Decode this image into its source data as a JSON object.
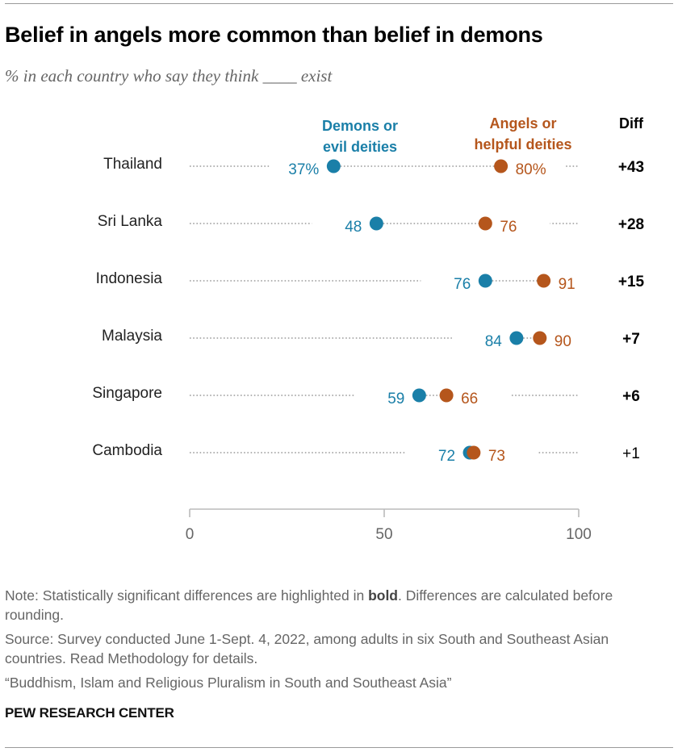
{
  "title": "Belief in angels more common than belief in demons",
  "subtitle": "% in each country who say they think ____ exist",
  "colors": {
    "demons": "#1a7fa8",
    "angels": "#b5561c",
    "axis": "#bbbbbb",
    "dots": "#9a9a9a"
  },
  "chart_data": {
    "type": "dot-plot",
    "title": "Belief in angels more common than belief in demons",
    "subtitle": "% in each country who say they think ____ exist",
    "xlim": [
      0,
      100
    ],
    "x_ticks": [
      0,
      50,
      100
    ],
    "diff_header": "Diff",
    "legend": {
      "demons": [
        "Demons or",
        "evil deities"
      ],
      "angels": [
        "Angels or",
        "helpful deities"
      ]
    },
    "series": [
      {
        "name": "Demons or evil deities",
        "key": "demons"
      },
      {
        "name": "Angels or helpful deities",
        "key": "angels"
      }
    ],
    "rows": [
      {
        "country": "Thailand",
        "demons": 37,
        "angels": 80,
        "demons_label": "37%",
        "angels_label": "80%",
        "diff": "+43",
        "significant": true
      },
      {
        "country": "Sri Lanka",
        "demons": 48,
        "angels": 76,
        "demons_label": "48",
        "angels_label": "76",
        "diff": "+28",
        "significant": true
      },
      {
        "country": "Indonesia",
        "demons": 76,
        "angels": 91,
        "demons_label": "76",
        "angels_label": "91",
        "diff": "+15",
        "significant": true
      },
      {
        "country": "Malaysia",
        "demons": 84,
        "angels": 90,
        "demons_label": "84",
        "angels_label": "90",
        "diff": "+7",
        "significant": true
      },
      {
        "country": "Singapore",
        "demons": 59,
        "angels": 66,
        "demons_label": "59",
        "angels_label": "66",
        "diff": "+6",
        "significant": true
      },
      {
        "country": "Cambodia",
        "demons": 72,
        "angels": 73,
        "demons_label": "72",
        "angels_label": "73",
        "diff": "+1",
        "significant": false
      }
    ]
  },
  "notes": {
    "note_prefix": "Note: Statistically significant differences are highlighted in ",
    "note_bold": "bold",
    "note_suffix": ". Differences are calculated before rounding.",
    "source": "Source: Survey conducted June 1-Sept. 4, 2022, among adults in six South and Southeast Asian countries. Read Methodology for details.",
    "report": "“Buddhism, Islam and Religious Pluralism in South and Southeast Asia”"
  },
  "brand": "PEW RESEARCH CENTER"
}
